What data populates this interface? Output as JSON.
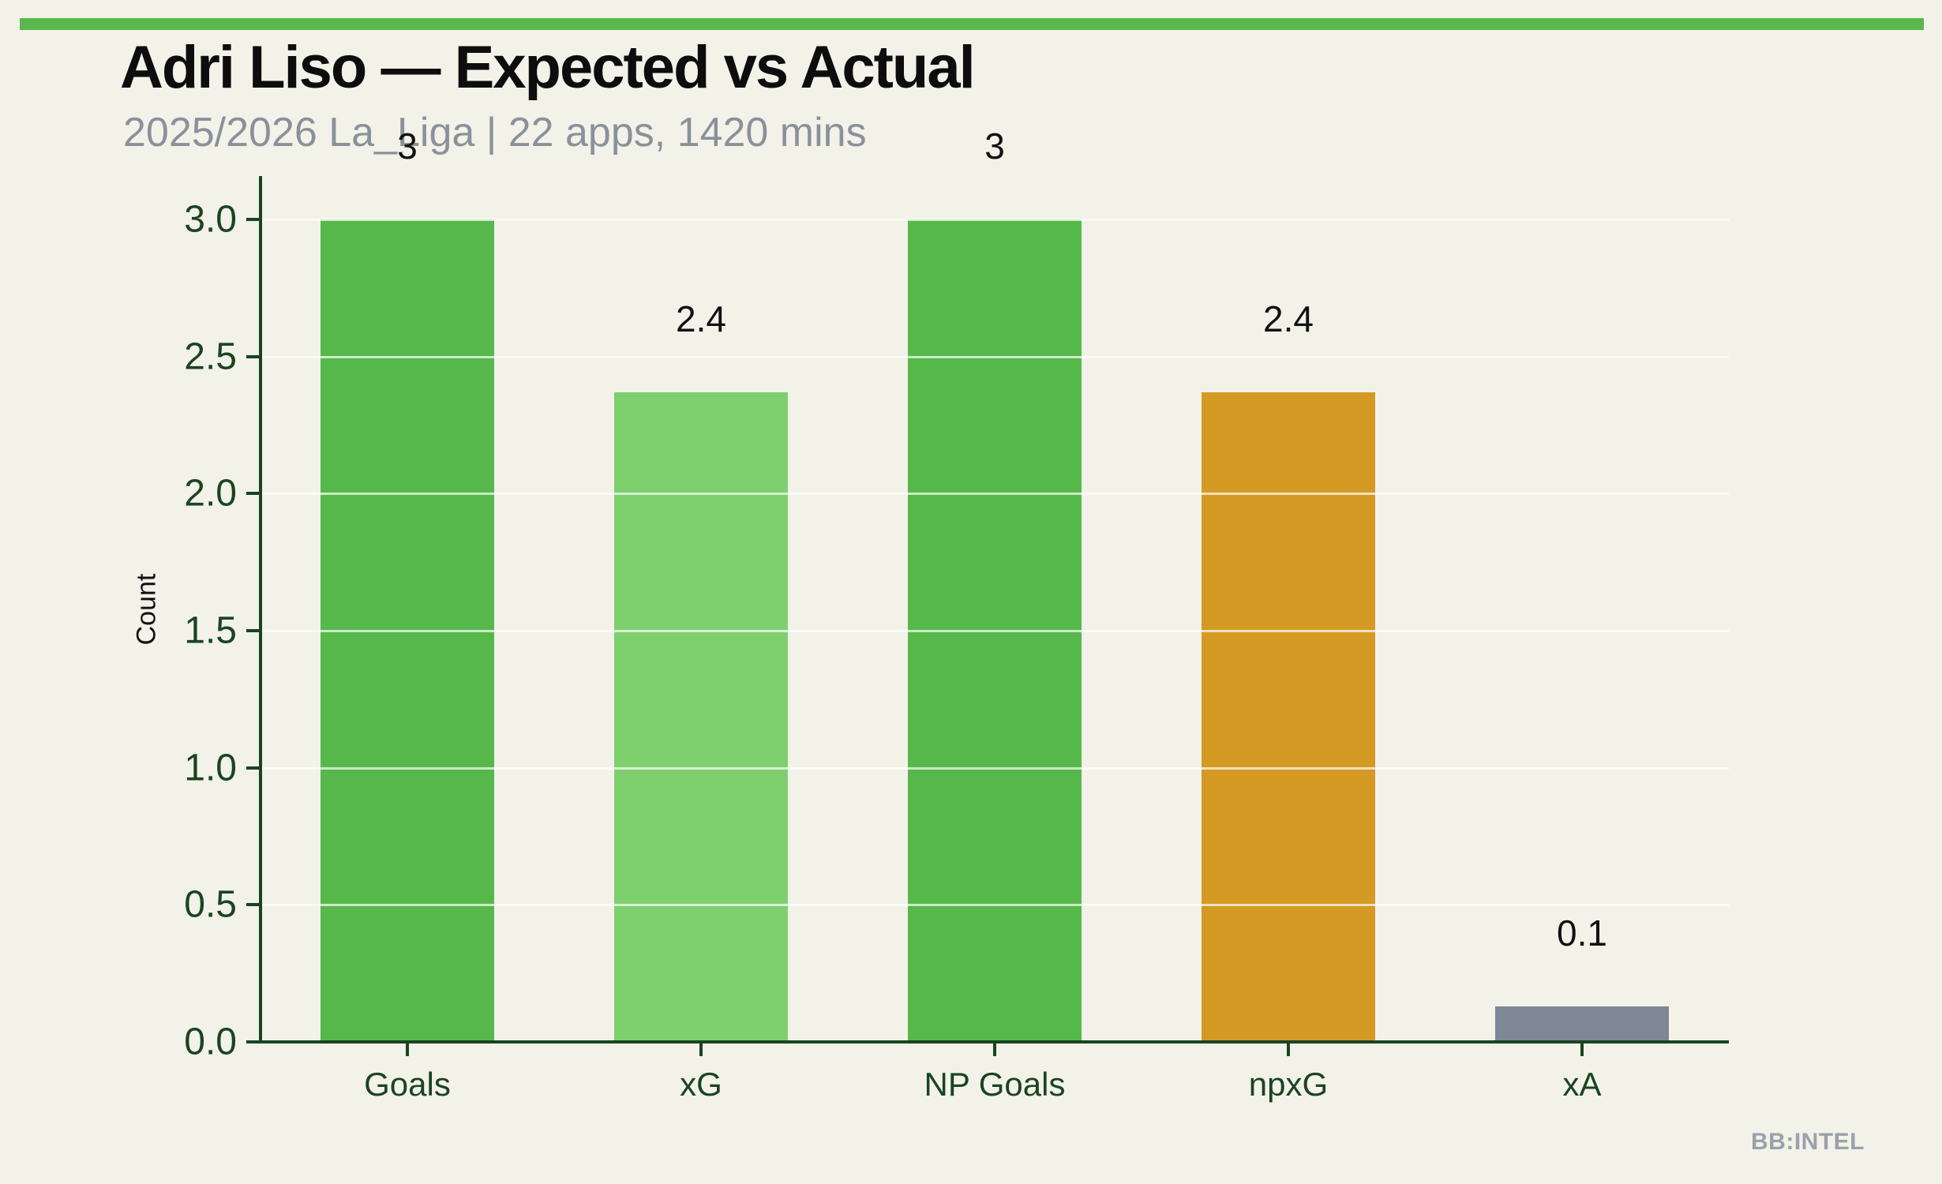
{
  "page": {
    "background": "#f2f2e9",
    "banner_color": "#58b84c"
  },
  "header": {
    "title": "Adri Liso — Expected vs Actual",
    "subtitle": "2025/2026 La_Liga | 22 apps, 1420 mins"
  },
  "watermark": {
    "label": "BB:INTEL",
    "color": "#9aa1ab"
  },
  "chart_data": {
    "type": "bar",
    "title": "Adri Liso — Expected vs Actual",
    "subtitle": "2025/2026 La_Liga | 22 apps, 1420 mins",
    "categories": [
      "Goals",
      "xG",
      "NP Goals",
      "npxG",
      "xA"
    ],
    "values": [
      3,
      2.37,
      3,
      2.37,
      0.13
    ],
    "value_labels": [
      "3",
      "2.4",
      "3",
      "2.4",
      "0.1"
    ],
    "bar_colors": [
      "#56b84a",
      "#7ed06e",
      "#56b84a",
      "#d49a24",
      "#7d8795"
    ],
    "xlabel": "",
    "ylabel": "Count",
    "ylim": [
      0,
      3.0
    ],
    "yticks": [
      0.0,
      0.5,
      1.0,
      1.5,
      2.0,
      2.5,
      3.0
    ],
    "ytick_labels": [
      "0.0",
      "0.5",
      "1.0",
      "1.5",
      "2.0",
      "2.5",
      "3.0"
    ],
    "grid": true,
    "legend": "none",
    "axis_color": "#1a4420",
    "tick_label_color": "#1a4420",
    "annotation_color": "#111111",
    "gridline_color": "rgba(255,255,255,0.7)"
  }
}
